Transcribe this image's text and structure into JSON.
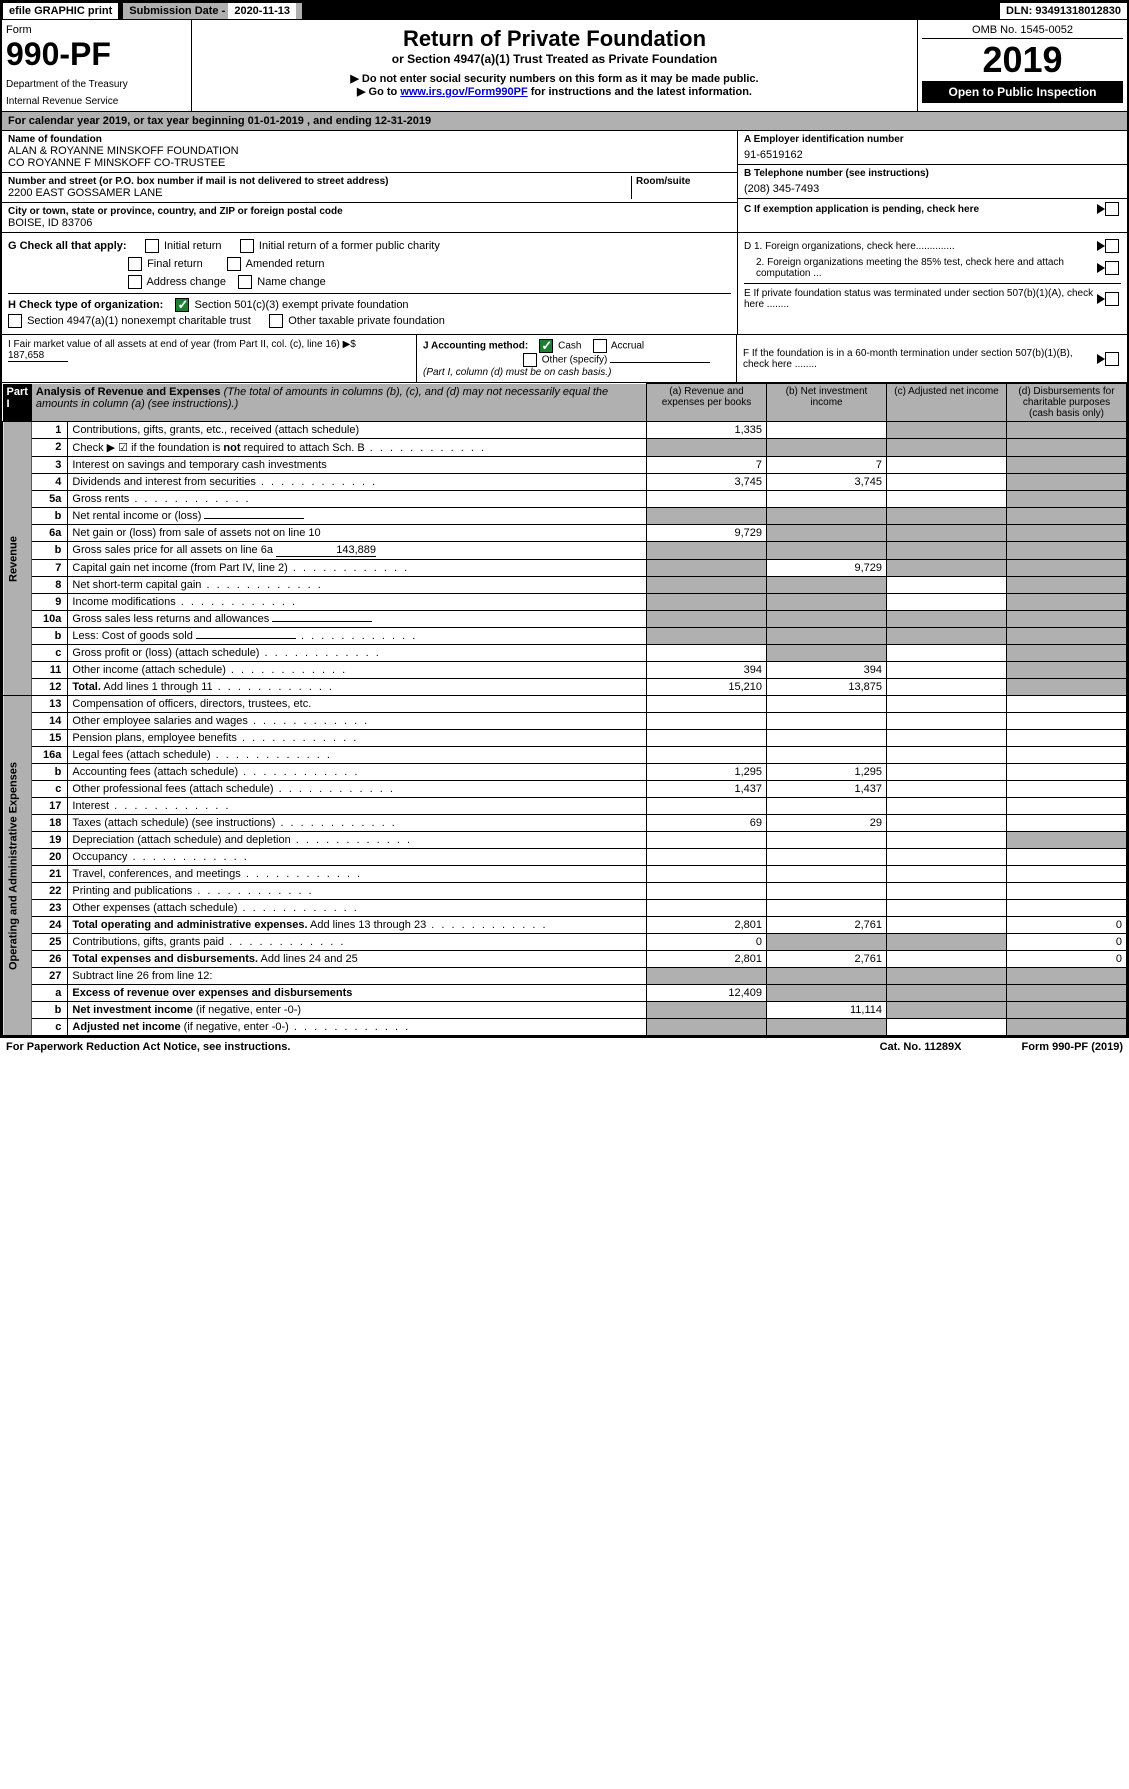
{
  "top_bar": {
    "efile": "efile GRAPHIC print",
    "sub_label": "Submission Date - ",
    "sub_date": "2020-11-13",
    "dln": "DLN: 93491318012830"
  },
  "header": {
    "form_label": "Form",
    "form_no": "990-PF",
    "dept": "Department of the Treasury",
    "irs": "Internal Revenue Service",
    "title": "Return of Private Foundation",
    "subtitle": "or Section 4947(a)(1) Trust Treated as Private Foundation",
    "note1": "▶ Do not enter social security numbers on this form as it may be made public.",
    "note2_prefix": "▶ Go to ",
    "note2_link": "www.irs.gov/Form990PF",
    "note2_suffix": " for instructions and the latest information.",
    "omb": "OMB No. 1545-0052",
    "year": "2019",
    "open": "Open to Public Inspection"
  },
  "calendar": "For calendar year 2019, or tax year beginning 01-01-2019                                    , and ending 12-31-2019",
  "info": {
    "name_label": "Name of foundation",
    "name": "ALAN & ROYANNE MINSKOFF FOUNDATION\nCO ROYANNE F MINSKOFF CO-TRUSTEE",
    "addr_label": "Number and street (or P.O. box number if mail is not delivered to street address)",
    "addr": "2200 EAST GOSSAMER LANE",
    "room_label": "Room/suite",
    "city_label": "City or town, state or province, country, and ZIP or foreign postal code",
    "city": "BOISE, ID  83706",
    "ein_label": "A Employer identification number",
    "ein": "91-6519162",
    "phone_label": "B Telephone number (see instructions)",
    "phone": "(208) 345-7493",
    "c_label": "C If exemption application is pending, check here"
  },
  "checks": {
    "g_label": "G Check all that apply:",
    "initial": "Initial return",
    "initial_former": "Initial return of a former public charity",
    "final": "Final return",
    "amended": "Amended return",
    "addr_change": "Address change",
    "name_change": "Name change",
    "h_label": "H Check type of organization:",
    "h1": "Section 501(c)(3) exempt private foundation",
    "h2": "Section 4947(a)(1) nonexempt charitable trust",
    "h3": "Other taxable private foundation",
    "d1": "D 1. Foreign organizations, check here..............",
    "d2": "2. Foreign organizations meeting the 85% test, check here and attach computation ...",
    "e": "E If private foundation status was terminated under section 507(b)(1)(A), check here ........"
  },
  "bottom": {
    "i_label": "I Fair market value of all assets at end of year (from Part II, col. (c), line 16) ▶$",
    "i_value": "187,658",
    "j_label": "J Accounting method:",
    "j_cash": "Cash",
    "j_accrual": "Accrual",
    "j_other": "Other (specify)",
    "j_note": "(Part I, column (d) must be on cash basis.)",
    "f_label": "F If the foundation is in a 60-month termination under section 507(b)(1)(B), check here ........"
  },
  "part1": {
    "label": "Part I",
    "title": "Analysis of Revenue and Expenses",
    "title_note": " (The total of amounts in columns (b), (c), and (d) may not necessarily equal the amounts in column (a) (see instructions).)",
    "col_a": "(a) Revenue and expenses per books",
    "col_b": "(b) Net investment income",
    "col_c": "(c) Adjusted net income",
    "col_d": "(d) Disbursements for charitable purposes (cash basis only)",
    "revenue_label": "Revenue",
    "expense_label": "Operating and Administrative Expenses"
  },
  "rows": [
    {
      "n": "1",
      "d": "Contributions, gifts, grants, etc., received (attach schedule)",
      "a": "1,335",
      "b": "",
      "shade_c": true,
      "shade_d": true
    },
    {
      "n": "2",
      "d": "Check ▶ ☑ if the foundation is <b>not</b> required to attach Sch. B",
      "dots": true,
      "shade_a": true,
      "shade_b": true,
      "shade_c": true,
      "shade_d": true
    },
    {
      "n": "3",
      "d": "Interest on savings and temporary cash investments",
      "a": "7",
      "b": "7",
      "shade_d": true
    },
    {
      "n": "4",
      "d": "Dividends and interest from securities",
      "dots": true,
      "a": "3,745",
      "b": "3,745",
      "shade_d": true
    },
    {
      "n": "5a",
      "d": "Gross rents",
      "dots": true,
      "shade_d": true
    },
    {
      "n": "b",
      "d": "Net rental income or (loss)",
      "underline": true,
      "shade_a": true,
      "shade_b": true,
      "shade_c": true,
      "shade_d": true
    },
    {
      "n": "6a",
      "d": "Net gain or (loss) from sale of assets not on line 10",
      "a": "9,729",
      "shade_b": true,
      "shade_c": true,
      "shade_d": true
    },
    {
      "n": "b",
      "d": "Gross sales price for all assets on line 6a",
      "underline": true,
      "uval": "143,889",
      "shade_a": true,
      "shade_b": true,
      "shade_c": true,
      "shade_d": true
    },
    {
      "n": "7",
      "d": "Capital gain net income (from Part IV, line 2)",
      "dots": true,
      "shade_a": true,
      "b": "9,729",
      "shade_c": true,
      "shade_d": true
    },
    {
      "n": "8",
      "d": "Net short-term capital gain",
      "dots": true,
      "shade_a": true,
      "shade_b": true,
      "shade_d": true
    },
    {
      "n": "9",
      "d": "Income modifications",
      "dots": true,
      "shade_a": true,
      "shade_b": true,
      "shade_d": true
    },
    {
      "n": "10a",
      "d": "Gross sales less returns and allowances",
      "underline": true,
      "shade_a": true,
      "shade_b": true,
      "shade_c": true,
      "shade_d": true
    },
    {
      "n": "b",
      "d": "Less: Cost of goods sold",
      "dots": true,
      "underline": true,
      "shade_a": true,
      "shade_b": true,
      "shade_c": true,
      "shade_d": true
    },
    {
      "n": "c",
      "d": "Gross profit or (loss) (attach schedule)",
      "dots": true,
      "shade_b": true,
      "shade_d": true
    },
    {
      "n": "11",
      "d": "Other income (attach schedule)",
      "dots": true,
      "a": "394",
      "b": "394",
      "shade_d": true
    },
    {
      "n": "12",
      "d": "<b>Total.</b> Add lines 1 through 11",
      "dots": true,
      "a": "15,210",
      "b": "13,875",
      "shade_d": true
    }
  ],
  "exp_rows": [
    {
      "n": "13",
      "d": "Compensation of officers, directors, trustees, etc."
    },
    {
      "n": "14",
      "d": "Other employee salaries and wages",
      "dots": true
    },
    {
      "n": "15",
      "d": "Pension plans, employee benefits",
      "dots": true
    },
    {
      "n": "16a",
      "d": "Legal fees (attach schedule)",
      "dots": true
    },
    {
      "n": "b",
      "d": "Accounting fees (attach schedule)",
      "dots": true,
      "a": "1,295",
      "b": "1,295"
    },
    {
      "n": "c",
      "d": "Other professional fees (attach schedule)",
      "dots": true,
      "a": "1,437",
      "b": "1,437"
    },
    {
      "n": "17",
      "d": "Interest",
      "dots": true
    },
    {
      "n": "18",
      "d": "Taxes (attach schedule) (see instructions)",
      "dots": true,
      "a": "69",
      "b": "29"
    },
    {
      "n": "19",
      "d": "Depreciation (attach schedule) and depletion",
      "dots": true,
      "shade_d": true
    },
    {
      "n": "20",
      "d": "Occupancy",
      "dots": true
    },
    {
      "n": "21",
      "d": "Travel, conferences, and meetings",
      "dots": true
    },
    {
      "n": "22",
      "d": "Printing and publications",
      "dots": true
    },
    {
      "n": "23",
      "d": "Other expenses (attach schedule)",
      "dots": true
    },
    {
      "n": "24",
      "d": "<b>Total operating and administrative expenses.</b> Add lines 13 through 23",
      "dots": true,
      "a": "2,801",
      "b": "2,761",
      "dval": "0"
    },
    {
      "n": "25",
      "d": "Contributions, gifts, grants paid",
      "dots": true,
      "a": "0",
      "shade_b": true,
      "shade_c": true,
      "dval": "0"
    },
    {
      "n": "26",
      "d": "<b>Total expenses and disbursements.</b> Add lines 24 and 25",
      "a": "2,801",
      "b": "2,761",
      "dval": "0"
    },
    {
      "n": "27",
      "d": "Subtract line 26 from line 12:",
      "shade_a": true,
      "shade_b": true,
      "shade_c": true,
      "shade_d": true
    },
    {
      "n": "a",
      "d": "<b>Excess of revenue over expenses and disbursements</b>",
      "a": "12,409",
      "shade_b": true,
      "shade_c": true,
      "shade_d": true
    },
    {
      "n": "b",
      "d": "<b>Net investment income</b> (if negative, enter -0-)",
      "shade_a": true,
      "b": "11,114",
      "shade_c": true,
      "shade_d": true
    },
    {
      "n": "c",
      "d": "<b>Adjusted net income</b> (if negative, enter -0-)",
      "dots": true,
      "shade_a": true,
      "shade_b": true,
      "shade_d": true
    }
  ],
  "footer": {
    "left": "For Paperwork Reduction Act Notice, see instructions.",
    "cat": "Cat. No. 11289X",
    "right": "Form 990-PF (2019)"
  }
}
